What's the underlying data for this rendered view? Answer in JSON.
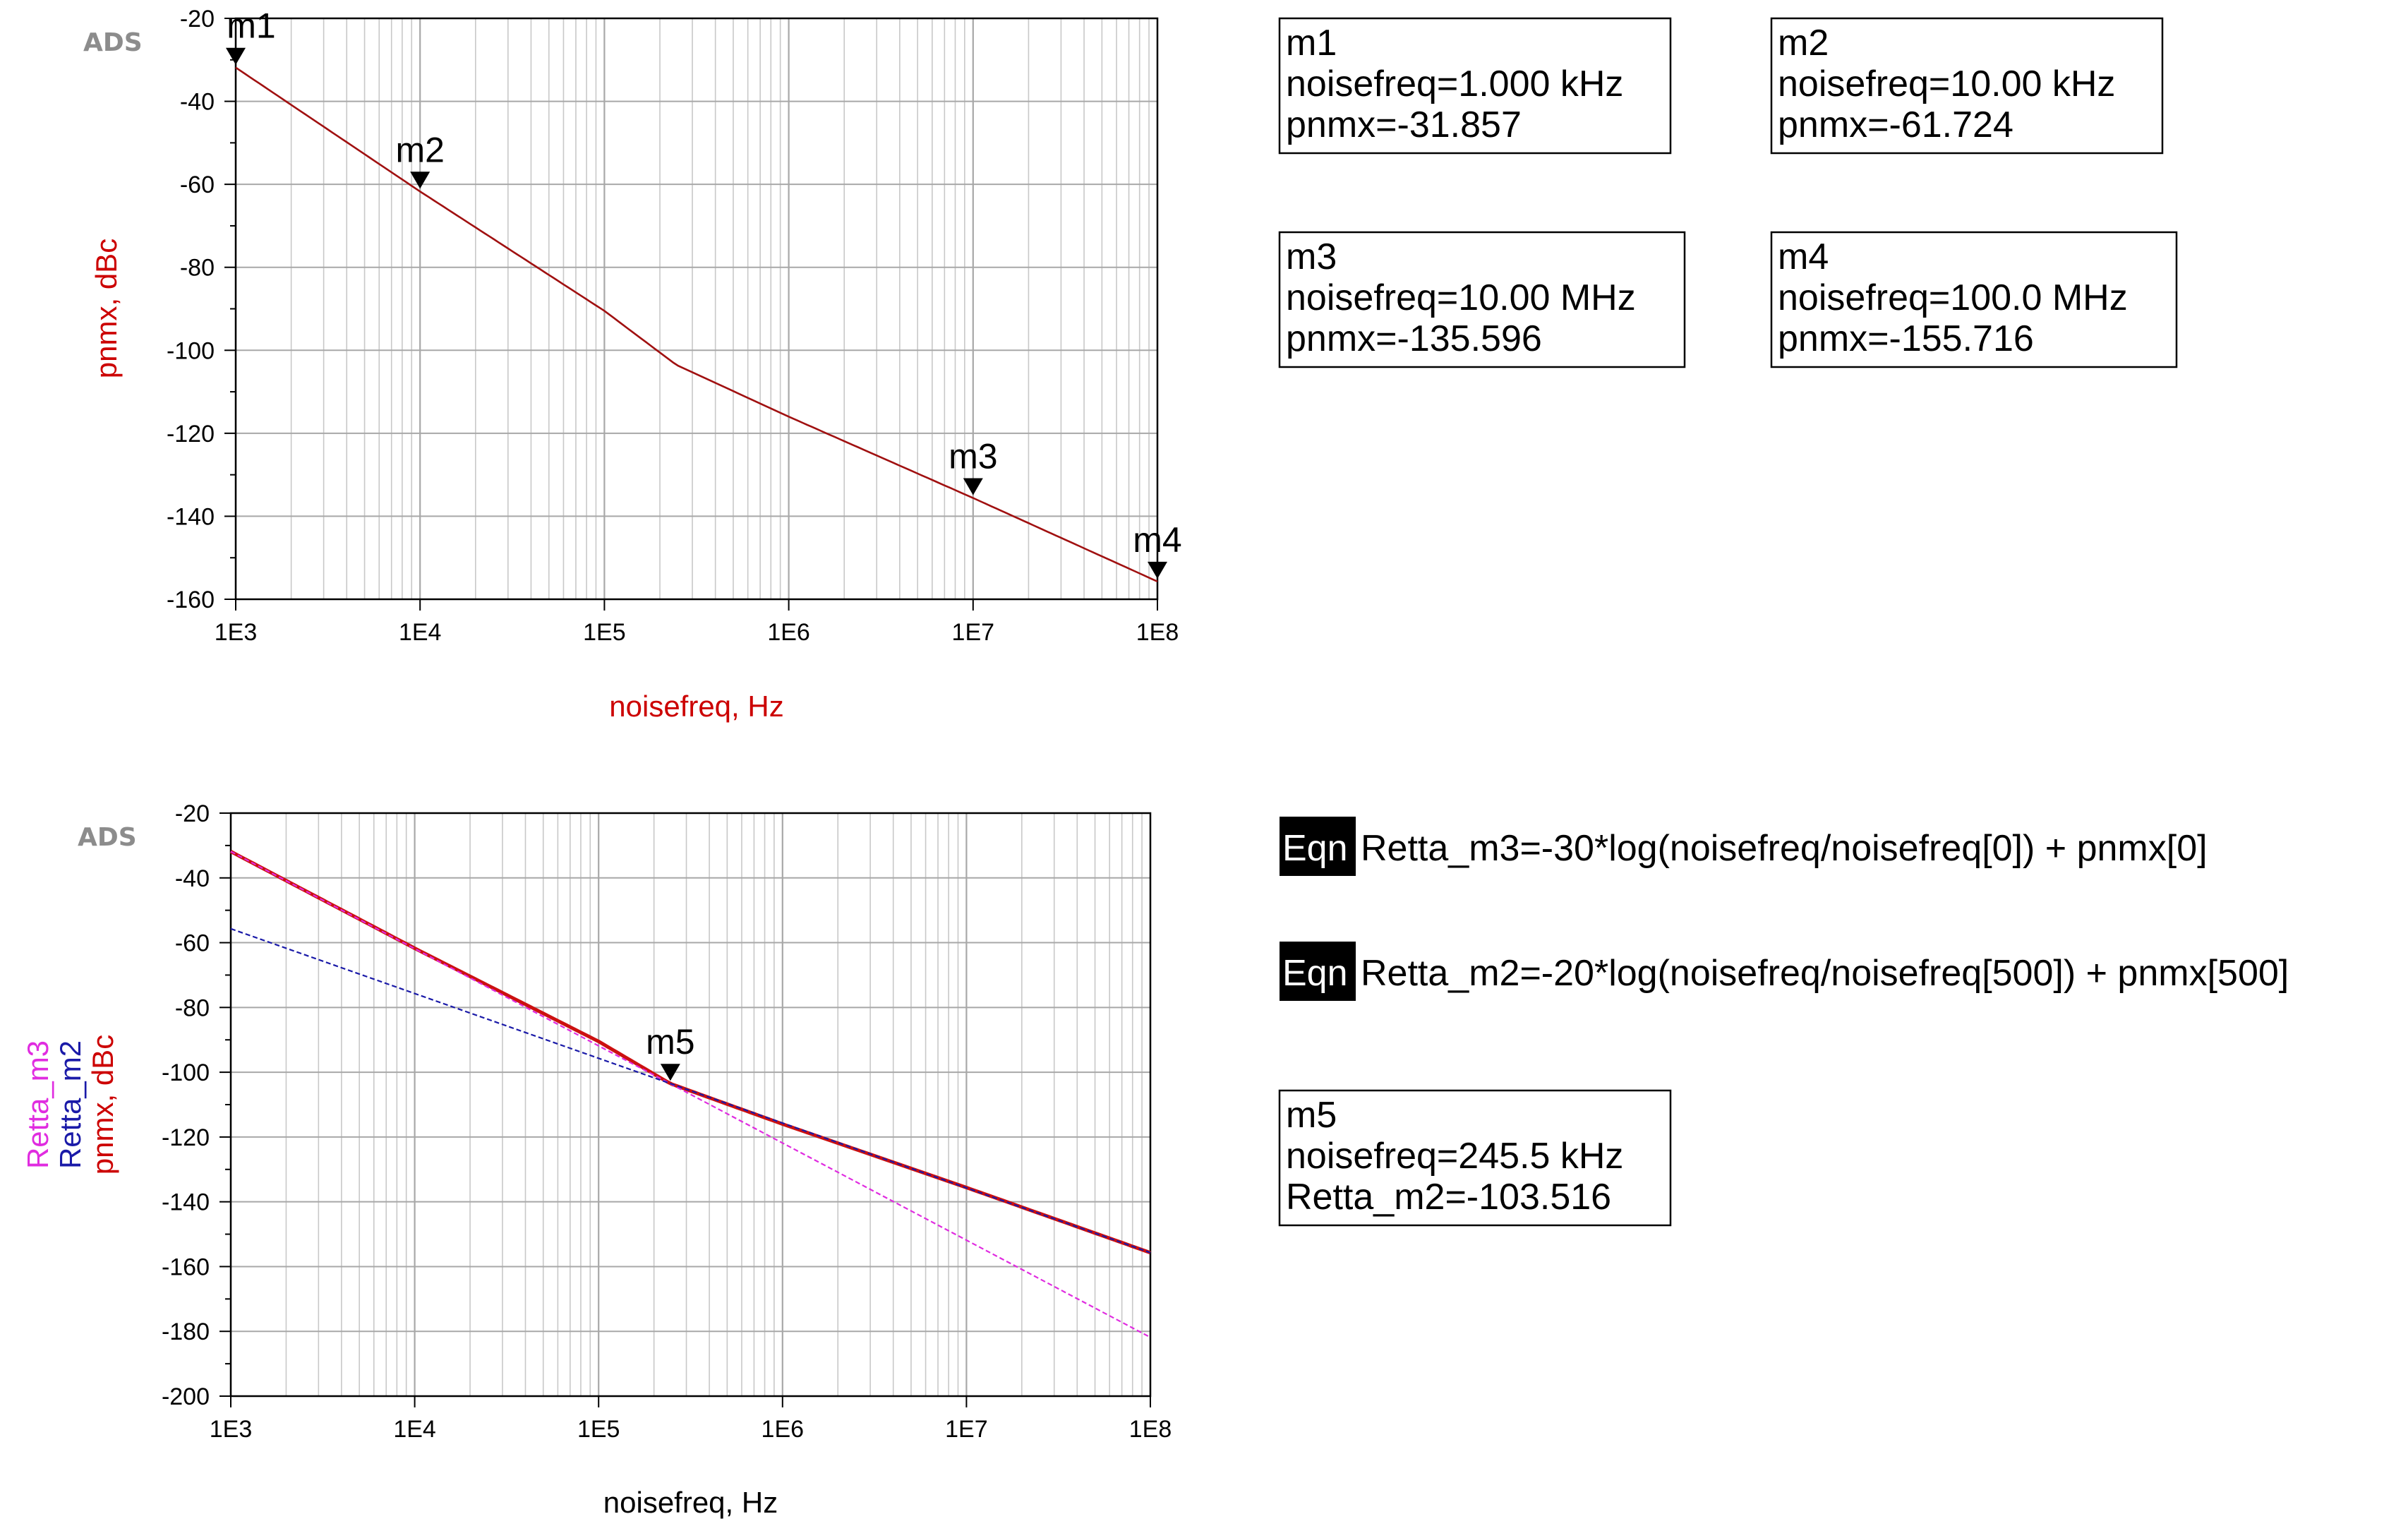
{
  "logo": "ADS",
  "charts": [
    {
      "xlabel": "noisefreq, Hz",
      "ylabels": [
        {
          "text": "pnmx, dBc",
          "color": "#cc0000"
        }
      ],
      "xtick_labels": [
        "1E3",
        "1E4",
        "1E5",
        "1E6",
        "1E7",
        "1E8"
      ],
      "ytick_labels": [
        "-20",
        "-40",
        "-60",
        "-80",
        "-100",
        "-120",
        "-140",
        "-160"
      ],
      "markers": [
        {
          "name": "m1",
          "freq": 1000,
          "value": -31.857
        },
        {
          "name": "m2",
          "freq": 10000,
          "value": -61.724
        },
        {
          "name": "m3",
          "freq": 10000000,
          "value": -135.596
        },
        {
          "name": "m4",
          "freq": 100000000,
          "value": -155.716
        }
      ],
      "readouts": [
        {
          "lines": [
            "m1",
            "noisefreq=1.000 kHz",
            "pnmx=-31.857"
          ]
        },
        {
          "lines": [
            "m2",
            "noisefreq=10.00 kHz",
            "pnmx=-61.724"
          ]
        },
        {
          "lines": [
            "m3",
            "noisefreq=10.00 MHz",
            "pnmx=-135.596"
          ]
        },
        {
          "lines": [
            "m4",
            "noisefreq=100.0 MHz",
            "pnmx=-155.716"
          ]
        }
      ]
    },
    {
      "xlabel": "noisefreq, Hz",
      "ylabels": [
        {
          "text": "Retta_m3",
          "color": "#e02ce0"
        },
        {
          "text": "Retta_m2",
          "color": "#1a1aa8"
        },
        {
          "text": "pnmx, dBc",
          "color": "#cc0000"
        }
      ],
      "xtick_labels": [
        "1E3",
        "1E4",
        "1E5",
        "1E6",
        "1E7",
        "1E8"
      ],
      "ytick_labels": [
        "-20",
        "-40",
        "-60",
        "-80",
        "-100",
        "-120",
        "-140",
        "-160",
        "-180",
        "-200"
      ],
      "markers": [
        {
          "name": "m5",
          "freq": 245500,
          "value": -103.516
        }
      ],
      "readouts": [
        {
          "lines": [
            "m5",
            "noisefreq=245.5 kHz",
            "Retta_m2=-103.516"
          ]
        }
      ],
      "equations": [
        {
          "badge": "Eqn",
          "text": "Retta_m3=-30*log(noisefreq/noisefreq[0]) + pnmx[0]"
        },
        {
          "badge": "Eqn",
          "text": "Retta_m2=-20*log(noisefreq/noisefreq[500]) + pnmx[500]"
        }
      ]
    }
  ],
  "chart_data": [
    {
      "type": "line",
      "xscale": "log",
      "xlim": [
        1000,
        100000000
      ],
      "ylim": [
        -160,
        -20
      ],
      "grid": true,
      "xlabel": "noisefreq, Hz",
      "ylabel": "pnmx, dBc",
      "series": [
        {
          "name": "pnmx",
          "color": "#a01010",
          "x": [
            1000,
            10000,
            100000,
            245500,
            1000000,
            10000000,
            100000000
          ],
          "y": [
            -31.857,
            -61.724,
            -90.5,
            -103.516,
            -116.0,
            -135.596,
            -155.716
          ]
        }
      ]
    },
    {
      "type": "line",
      "xscale": "log",
      "xlim": [
        1000,
        100000000
      ],
      "ylim": [
        -200,
        -20
      ],
      "grid": true,
      "xlabel": "noisefreq, Hz",
      "ylabel": "Retta_m3 / Retta_m2 / pnmx, dBc",
      "series": [
        {
          "name": "pnmx",
          "color": "#cc1010",
          "x": [
            1000,
            10000,
            100000,
            245500,
            1000000,
            10000000,
            100000000
          ],
          "y": [
            -31.857,
            -61.724,
            -90.5,
            -103.516,
            -116.0,
            -135.596,
            -155.716
          ]
        },
        {
          "name": "Retta_m3",
          "color": "#e02ce0",
          "x": [
            1000,
            100000000
          ],
          "y": [
            -31.857,
            -181.857
          ]
        },
        {
          "name": "Retta_m2",
          "color": "#1a1aa8",
          "x": [
            1000,
            100000000
          ],
          "y": [
            -55.7,
            -155.7
          ]
        }
      ]
    }
  ]
}
